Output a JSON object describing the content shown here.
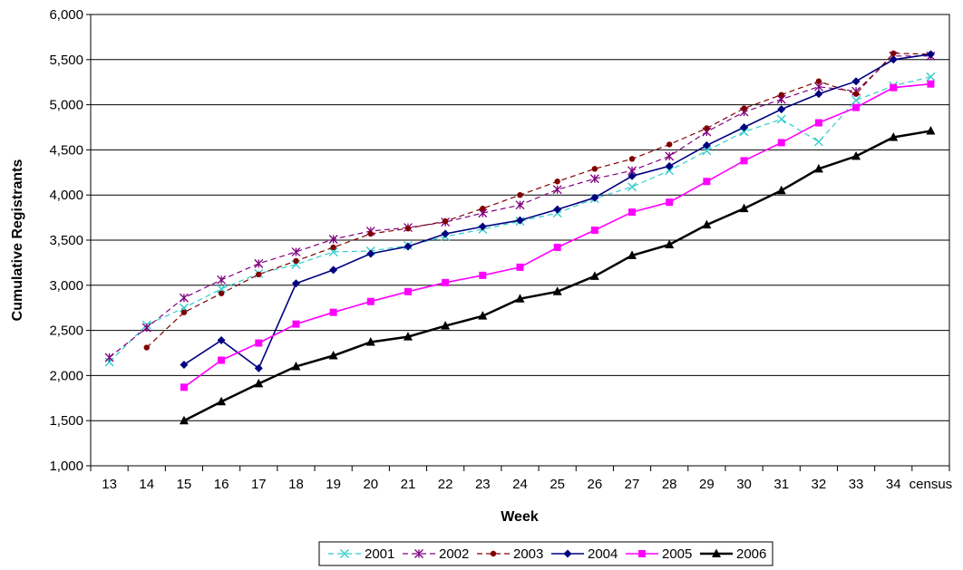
{
  "chart_data": {
    "type": "line",
    "title": "",
    "xlabel": "Week",
    "ylabel": "Cumulative Registrants",
    "categories": [
      "13",
      "14",
      "15",
      "16",
      "17",
      "18",
      "19",
      "20",
      "21",
      "22",
      "23",
      "24",
      "25",
      "26",
      "27",
      "28",
      "29",
      "30",
      "31",
      "32",
      "33",
      "34",
      "census"
    ],
    "ylim": [
      1000,
      6000
    ],
    "yticks": [
      1000,
      1500,
      2000,
      2500,
      3000,
      3500,
      4000,
      4500,
      5000,
      5500,
      6000
    ],
    "ytick_labels": [
      "1,000",
      "1,500",
      "2,000",
      "2,500",
      "3,000",
      "3,500",
      "4,000",
      "4,500",
      "5,000",
      "5,500",
      "6,000"
    ],
    "grid": "horizontal",
    "legend_position": "bottom",
    "series": [
      {
        "name": "2001",
        "color": "#33CCCC",
        "dash": "6,4",
        "marker": "x",
        "values": [
          2150,
          2560,
          2750,
          2960,
          3130,
          3230,
          3370,
          3380,
          3440,
          3540,
          3620,
          3710,
          3800,
          3960,
          4090,
          4270,
          4490,
          4700,
          4840,
          4590,
          5050,
          5210,
          5310
        ]
      },
      {
        "name": "2002",
        "color": "#800080",
        "dash": "6,4",
        "marker": "star",
        "values": [
          2200,
          2530,
          2860,
          3060,
          3240,
          3370,
          3510,
          3600,
          3640,
          3700,
          3800,
          3890,
          4060,
          4180,
          4270,
          4430,
          4700,
          4920,
          5060,
          5200,
          5150,
          5540,
          5540
        ]
      },
      {
        "name": "2003",
        "color": "#800000",
        "dash": "6,4",
        "marker": "circle",
        "values": [
          null,
          2310,
          2700,
          2910,
          3120,
          3270,
          3420,
          3570,
          3630,
          3710,
          3850,
          4000,
          4150,
          4290,
          4400,
          4560,
          4740,
          4960,
          5110,
          5260,
          5120,
          5570,
          5560
        ]
      },
      {
        "name": "2004",
        "color": "#000080",
        "dash": "",
        "marker": "diamond",
        "values": [
          null,
          null,
          2120,
          2390,
          2080,
          3020,
          3170,
          3350,
          3430,
          3570,
          3650,
          3720,
          3840,
          3970,
          4210,
          4320,
          4550,
          4750,
          4950,
          5120,
          5260,
          5500,
          5560
        ]
      },
      {
        "name": "2005",
        "color": "#FF00FF",
        "dash": "",
        "marker": "square",
        "values": [
          null,
          null,
          1870,
          2170,
          2360,
          2570,
          2700,
          2820,
          2930,
          3030,
          3110,
          3200,
          3420,
          3610,
          3810,
          3920,
          4150,
          4380,
          4580,
          4800,
          4970,
          5190,
          5230
        ]
      },
      {
        "name": "2006",
        "color": "#000000",
        "dash": "",
        "marker": "triangle",
        "values": [
          null,
          null,
          1500,
          1710,
          1910,
          2100,
          2220,
          2370,
          2430,
          2550,
          2660,
          2850,
          2930,
          3100,
          3330,
          3450,
          3670,
          3850,
          4050,
          4290,
          4430,
          4640,
          4710
        ]
      }
    ]
  }
}
